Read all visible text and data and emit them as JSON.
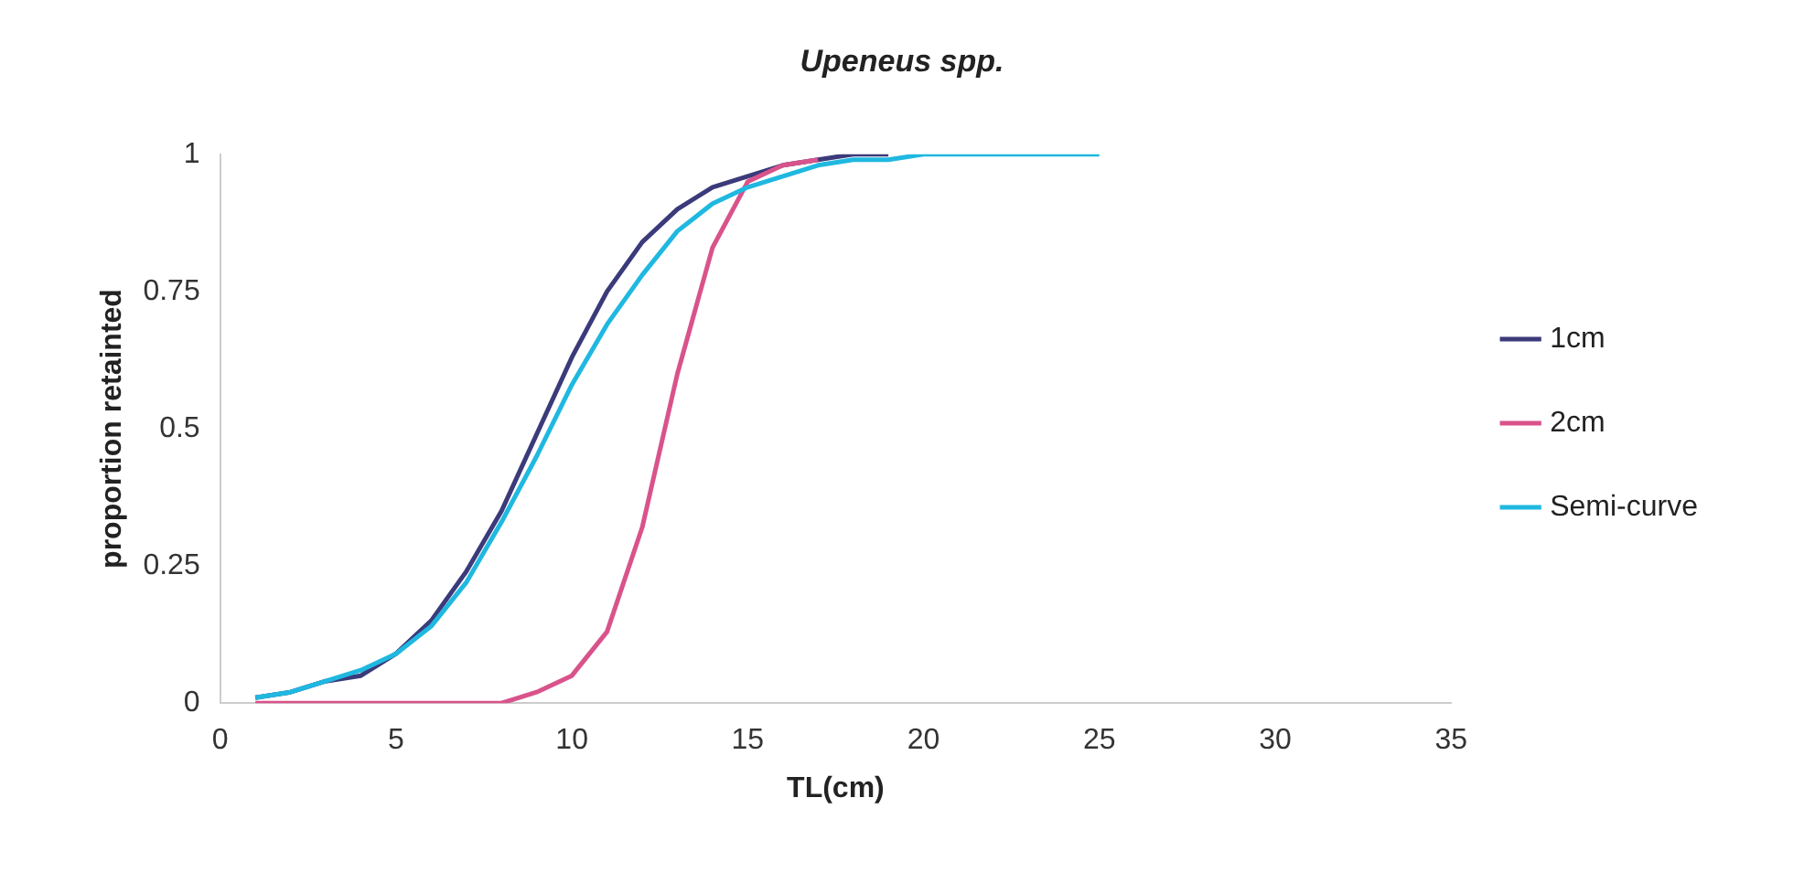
{
  "chart_data": {
    "type": "line",
    "title": "Upeneus spp.",
    "xlabel": "TL(cm)",
    "ylabel": "proportion retainted",
    "x": [
      1,
      2,
      3,
      4,
      5,
      6,
      7,
      8,
      9,
      10,
      11,
      12,
      13,
      14,
      15,
      16,
      17,
      18,
      19,
      20,
      21,
      22,
      23,
      24,
      25
    ],
    "series": [
      {
        "name": "1cm",
        "color": "#3b3a7a",
        "values": [
          0.01,
          0.02,
          0.04,
          0.05,
          0.09,
          0.15,
          0.24,
          0.35,
          0.49,
          0.63,
          0.75,
          0.84,
          0.9,
          0.94,
          0.96,
          0.98,
          0.99,
          1,
          1,
          null,
          null,
          null,
          null,
          null,
          null
        ]
      },
      {
        "name": "2cm",
        "color": "#d9538b",
        "values": [
          0,
          0,
          0,
          0,
          0,
          0,
          0,
          0,
          0.02,
          0.05,
          0.13,
          0.32,
          0.6,
          0.83,
          0.95,
          0.98,
          0.99,
          null,
          null,
          null,
          null,
          null,
          null,
          null,
          null
        ]
      },
      {
        "name": "Semi-curve",
        "color": "#1fb8e0",
        "values": [
          0.01,
          0.02,
          0.04,
          0.06,
          0.09,
          0.14,
          0.22,
          0.33,
          0.45,
          0.58,
          0.69,
          0.78,
          0.86,
          0.91,
          0.94,
          0.96,
          0.98,
          0.99,
          0.99,
          1,
          1,
          1,
          1,
          1,
          1
        ]
      }
    ],
    "xlim": [
      0,
      35
    ],
    "xticks": [
      0,
      5,
      10,
      15,
      20,
      25,
      30,
      35
    ],
    "ylim": [
      0,
      1
    ],
    "yticks": [
      0,
      0.25,
      0.5,
      0.75,
      1
    ],
    "grid": false,
    "legend": "right",
    "marker": "none",
    "line_style": "solid"
  }
}
